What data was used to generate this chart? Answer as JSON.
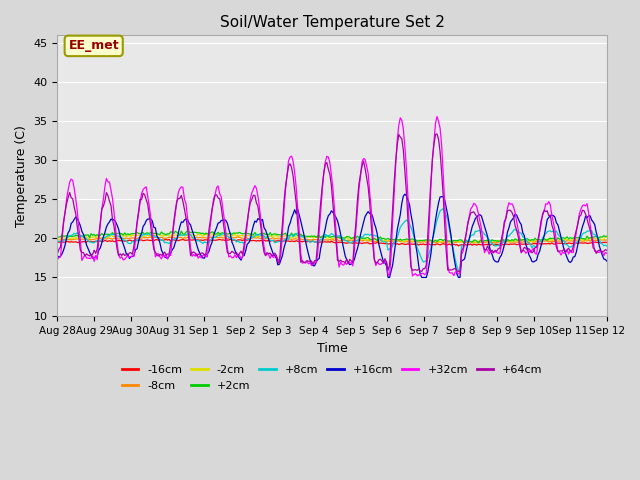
{
  "title": "Soil/Water Temperature Set 2",
  "xlabel": "Time",
  "ylabel": "Temperature (C)",
  "ylim": [
    10,
    46
  ],
  "yticks": [
    10,
    15,
    20,
    25,
    30,
    35,
    40,
    45
  ],
  "annotation_text": "EE_met",
  "annotation_bg": "#ffffcc",
  "annotation_text_color": "#990000",
  "series_colors": {
    "-16cm": "#ff0000",
    "-8cm": "#ff8800",
    "-2cm": "#dddd00",
    "+2cm": "#00cc00",
    "+8cm": "#00cccc",
    "+16cm": "#0000cc",
    "+32cm": "#ff00ff",
    "+64cm": "#aa00aa"
  },
  "n_points": 360,
  "xtick_labels": [
    "Aug 28",
    "Aug 29",
    "Aug 30",
    "Aug 31",
    "Sep 1",
    "Sep 2",
    "Sep 3",
    "Sep 4",
    "Sep 5",
    "Sep 6",
    "Sep 7",
    "Sep 8",
    "Sep 9",
    "Sep 10",
    "Sep 11",
    "Sep 12"
  ]
}
